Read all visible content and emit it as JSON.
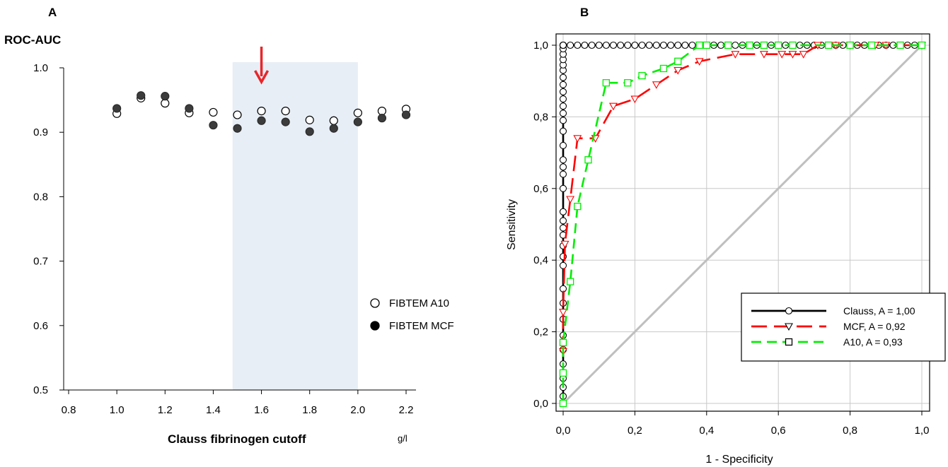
{
  "chart_data": [
    {
      "panel": "A",
      "type": "scatter",
      "title": "ROC-AUC",
      "xlabel": "Clauss fibrinogen cutoff",
      "x_unit": "g/l",
      "xlim": [
        0.8,
        2.25
      ],
      "ylim": [
        0.5,
        1.0
      ],
      "xticks": [
        "0.8",
        "1.0",
        "1.2",
        "1.4",
        "1.6",
        "1.8",
        "2.0",
        "2.2"
      ],
      "yticks": [
        "0.5",
        "0.6",
        "0.7",
        "0.8",
        "0.9",
        "1.0"
      ],
      "shaded_region": [
        1.48,
        2.0
      ],
      "arrow_at_x": 1.6,
      "arrow_color": "#e8262a",
      "shade_color": "#e8eef6",
      "legend_position": "right",
      "series": [
        {
          "name": "FIBTEM A10",
          "marker": "open-circle",
          "x": [
            1.0,
            1.1,
            1.2,
            1.3,
            1.4,
            1.5,
            1.6,
            1.7,
            1.8,
            1.9,
            2.0,
            2.1,
            2.2
          ],
          "y": [
            0.929,
            0.953,
            0.945,
            0.93,
            0.931,
            0.927,
            0.933,
            0.933,
            0.919,
            0.918,
            0.93,
            0.933,
            0.936
          ]
        },
        {
          "name": "FIBTEM MCF",
          "marker": "filled-circle",
          "x": [
            1.0,
            1.1,
            1.2,
            1.3,
            1.4,
            1.5,
            1.6,
            1.7,
            1.8,
            1.9,
            2.0,
            2.1,
            2.2
          ],
          "y": [
            0.937,
            0.957,
            0.956,
            0.937,
            0.911,
            0.906,
            0.918,
            0.916,
            0.901,
            0.906,
            0.916,
            0.922,
            0.927
          ]
        }
      ]
    },
    {
      "panel": "B",
      "type": "line",
      "xlabel": "1 - Specificity",
      "ylabel": "Sensitivity",
      "xlim": [
        -0.02,
        1.02
      ],
      "ylim": [
        -0.02,
        1.03
      ],
      "xticks": [
        "0,0",
        "0,2",
        "0,4",
        "0,6",
        "0,8",
        "1,0"
      ],
      "yticks": [
        "0,0",
        "0,2",
        "0,4",
        "0,6",
        "0,8",
        "1,0"
      ],
      "grid": true,
      "legend_position": "lower-right",
      "diagonal_color": "#bfbfbf",
      "series": [
        {
          "name": "Clauss, A = 1,00",
          "color": "#000000",
          "marker": "circle",
          "dash": "solid",
          "x": [
            0,
            0,
            0,
            0,
            0,
            0,
            0,
            0,
            0,
            0,
            0,
            0,
            0,
            0,
            0,
            0,
            0,
            0,
            0,
            0,
            0,
            0,
            0,
            0,
            0,
            0,
            0,
            0,
            0,
            0,
            0,
            0,
            0,
            0,
            0,
            0,
            0,
            0,
            0,
            0,
            0,
            0,
            0,
            0.02,
            0.04,
            0.06,
            0.08,
            0.1,
            0.12,
            0.14,
            0.16,
            0.18,
            0.2,
            0.22,
            0.24,
            0.26,
            0.28,
            0.3,
            0.32,
            0.34,
            0.36,
            0.38,
            0.4,
            0.42,
            0.44,
            0.46,
            0.48,
            0.5,
            0.52,
            0.54,
            0.56,
            0.58,
            0.6,
            0.62,
            0.64,
            0.66,
            0.68,
            0.7,
            0.72,
            0.74,
            0.76,
            0.78,
            0.8,
            0.82,
            0.84,
            0.86,
            0.88,
            0.9,
            0.92,
            0.94,
            0.96,
            0.98,
            1.0
          ],
          "y": [
            0.0,
            0.02,
            0.045,
            0.07,
            0.11,
            0.15,
            0.19,
            0.235,
            0.28,
            0.32,
            0.385,
            0.41,
            0.44,
            0.47,
            0.49,
            0.51,
            0.535,
            0.6,
            0.64,
            0.66,
            0.68,
            0.72,
            0.76,
            0.79,
            0.81,
            0.83,
            0.85,
            0.87,
            0.89,
            0.91,
            0.93,
            0.945,
            0.96,
            0.975,
            0.99,
            1.0,
            1.0,
            1.0,
            1.0,
            1.0,
            1.0,
            1.0,
            1.0,
            1,
            1,
            1,
            1,
            1,
            1,
            1,
            1,
            1,
            1,
            1,
            1,
            1,
            1,
            1,
            1,
            1,
            1,
            1,
            1,
            1,
            1,
            1,
            1,
            1,
            1,
            1,
            1,
            1,
            1,
            1,
            1,
            1,
            1,
            1,
            1,
            1,
            1,
            1,
            1,
            1,
            1,
            1,
            1,
            1,
            1,
            1,
            1,
            1,
            1
          ]
        },
        {
          "name": "MCF, A = 0,92",
          "color": "#ff0000",
          "marker": "triangle-down",
          "dash": "long-dash",
          "x": [
            0.0,
            0.0,
            0.005,
            0.02,
            0.04,
            0.09,
            0.14,
            0.2,
            0.26,
            0.32,
            0.38,
            0.48,
            0.56,
            0.61,
            0.64,
            0.67,
            0.71,
            0.76,
            0.8,
            0.87,
            0.9,
            1.0
          ],
          "y": [
            0.145,
            0.255,
            0.445,
            0.57,
            0.74,
            0.74,
            0.83,
            0.85,
            0.89,
            0.93,
            0.955,
            0.975,
            0.975,
            0.975,
            0.975,
            0.975,
            1.0,
            1.0,
            1.0,
            1.0,
            1.0,
            1.0
          ]
        },
        {
          "name": "A10, A = 0,93",
          "color": "#00ee00",
          "marker": "square",
          "dash": "dash",
          "x": [
            0.0,
            0.0,
            0.0,
            0.02,
            0.04,
            0.07,
            0.12,
            0.18,
            0.22,
            0.28,
            0.32,
            0.38,
            0.4,
            0.46,
            0.52,
            0.56,
            0.6,
            0.64,
            0.74,
            0.8,
            0.86,
            0.94,
            1.0
          ],
          "y": [
            0.0,
            0.085,
            0.17,
            0.34,
            0.55,
            0.68,
            0.895,
            0.895,
            0.915,
            0.935,
            0.955,
            1.0,
            1.0,
            1.0,
            1.0,
            1.0,
            1.0,
            1.0,
            1.0,
            1.0,
            1.0,
            1.0,
            1.0
          ]
        },
        {
          "name": "",
          "color": "#bfbfbf",
          "marker": "none",
          "dash": "solid",
          "x": [
            0,
            1
          ],
          "y": [
            0,
            1
          ]
        }
      ]
    }
  ]
}
